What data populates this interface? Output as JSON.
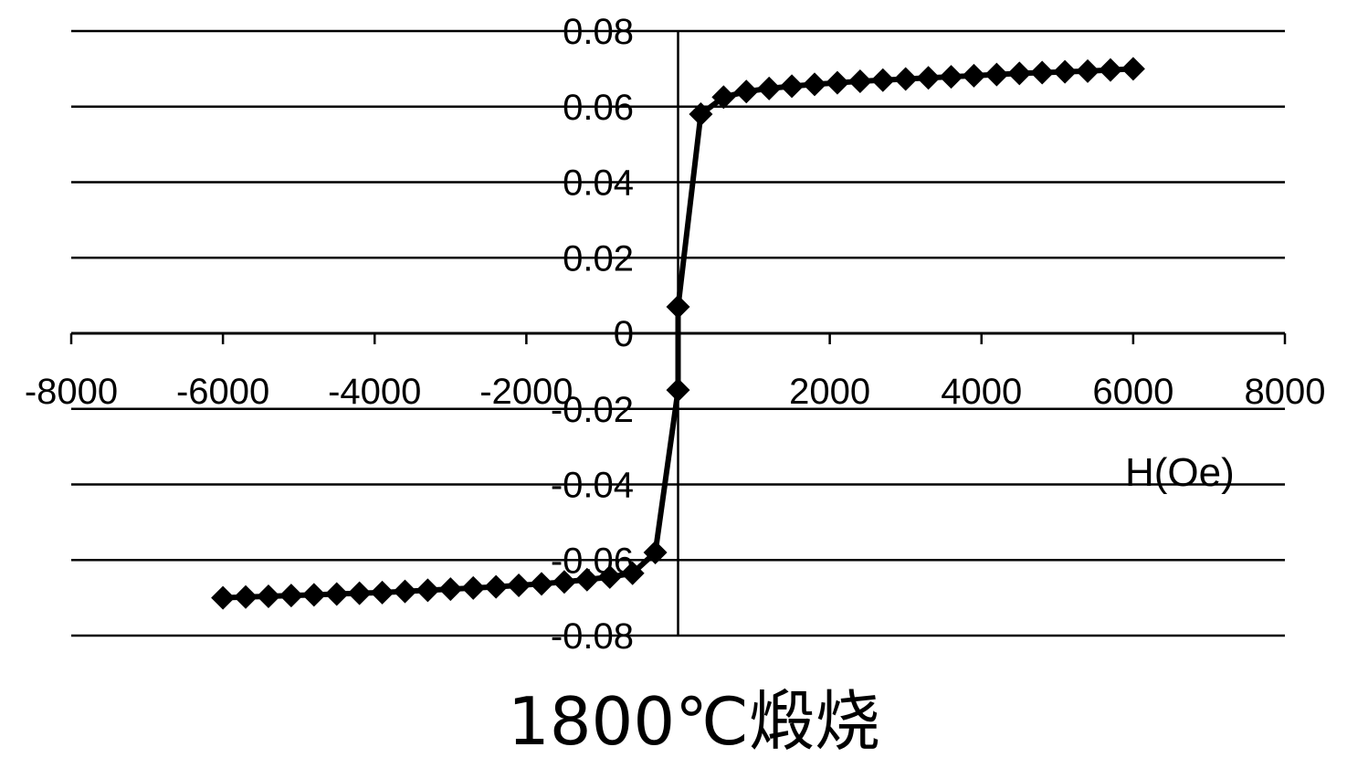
{
  "chart_data": {
    "type": "line",
    "title": "",
    "caption": "1800℃煅烧",
    "xlabel": "H(Oe)",
    "ylabel": "",
    "xlim": [
      -8000,
      8000
    ],
    "ylim": [
      -0.08,
      0.08
    ],
    "x_ticks": [
      -8000,
      -6000,
      -4000,
      -2000,
      2000,
      4000,
      6000,
      8000
    ],
    "x_tick_labels": [
      "-8000",
      "-6000",
      "-4000",
      "-2000",
      "2000",
      "4000",
      "6000",
      "8000"
    ],
    "y_ticks": [
      0.08,
      0.06,
      0.04,
      0.02,
      0,
      -0.02,
      -0.04,
      -0.06,
      -0.08
    ],
    "y_tick_labels": [
      "0.08",
      "0.06",
      "0.04",
      "0.02",
      "0",
      "-0.02",
      "-0.04",
      "-0.06",
      "-0.08"
    ],
    "grid": true,
    "line_color": "#000000",
    "marker": "diamond",
    "series": [
      {
        "x": [
          -6000,
          -5700,
          -5400,
          -5100,
          -4800,
          -4500,
          -4200,
          -3900,
          -3600,
          -3300,
          -3000,
          -2700,
          -2400,
          -2100,
          -1800,
          -1500,
          -1200,
          -900,
          -600,
          -300,
          0,
          0,
          300,
          600,
          900,
          1200,
          1500,
          1800,
          2100,
          2400,
          2700,
          3000,
          3300,
          3600,
          3900,
          4200,
          4500,
          4800,
          5100,
          5400,
          5700,
          6000
        ],
        "y": [
          -0.07,
          -0.0698,
          -0.0696,
          -0.0694,
          -0.0692,
          -0.069,
          -0.0688,
          -0.0686,
          -0.0683,
          -0.068,
          -0.0677,
          -0.0674,
          -0.0671,
          -0.0667,
          -0.0663,
          -0.0658,
          -0.0652,
          -0.0645,
          -0.0635,
          -0.058,
          -0.015,
          0.007,
          0.058,
          0.0625,
          0.064,
          0.0648,
          0.0654,
          0.0659,
          0.0663,
          0.0667,
          0.067,
          0.0673,
          0.0676,
          0.0679,
          0.0682,
          0.0685,
          0.0688,
          0.069,
          0.0692,
          0.0694,
          0.0697,
          0.07
        ]
      }
    ]
  }
}
